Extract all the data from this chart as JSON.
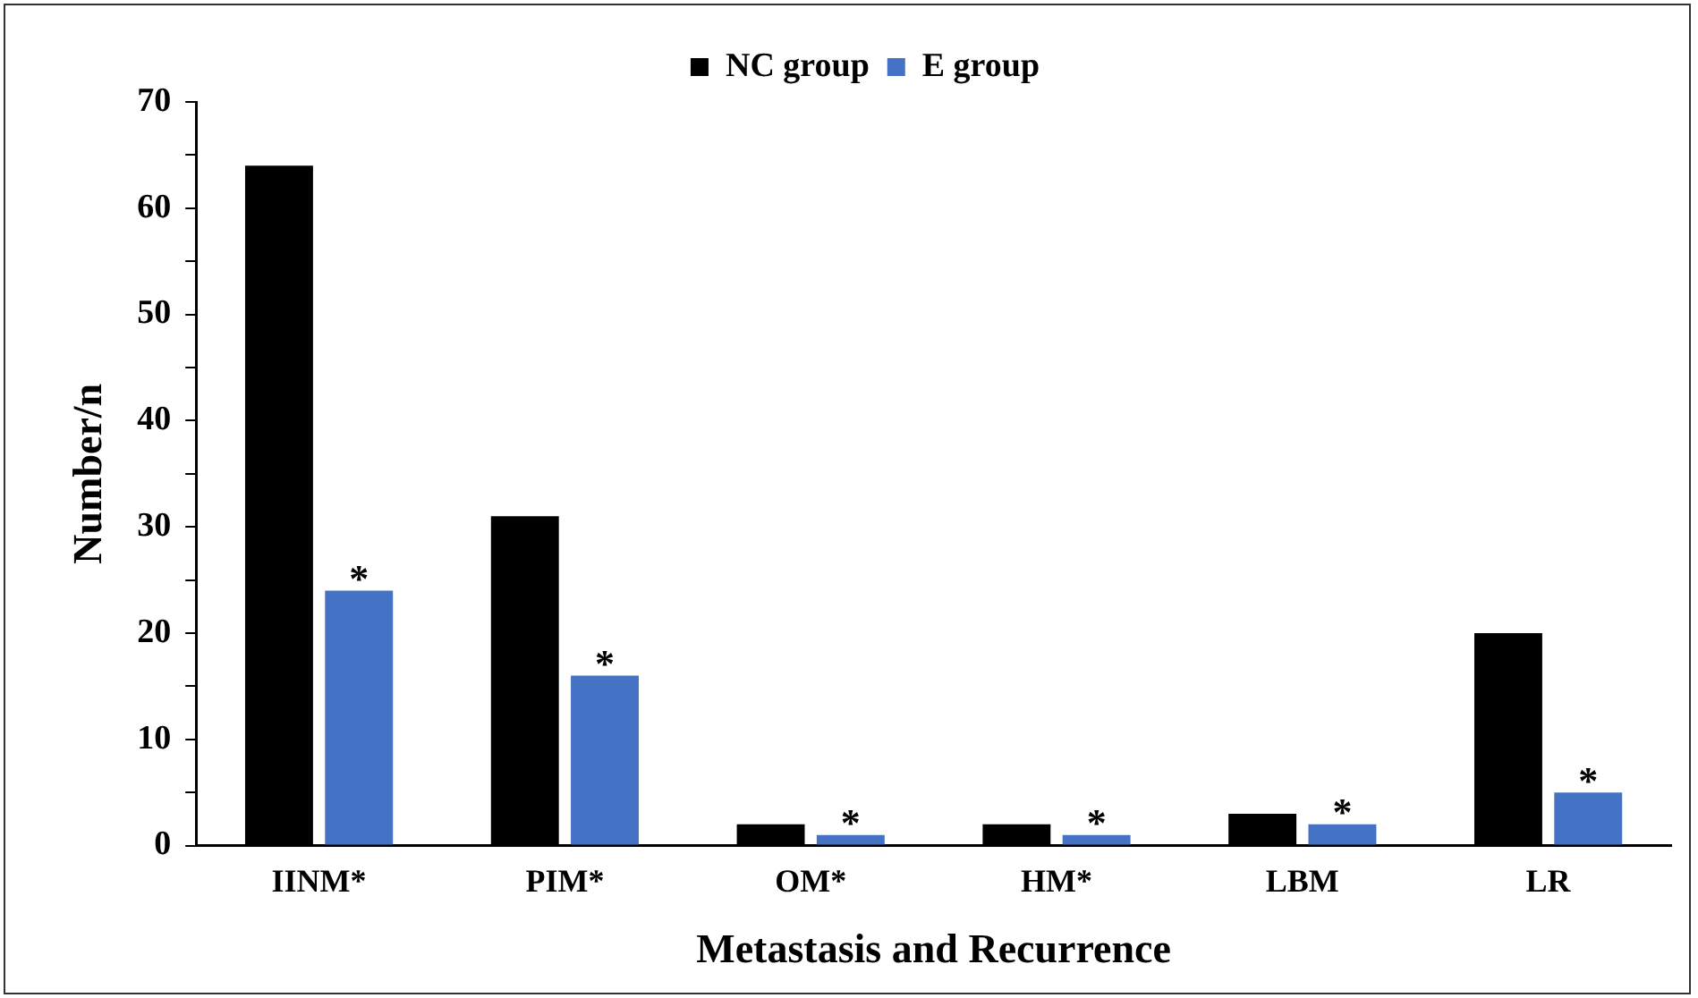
{
  "chart_data": {
    "type": "bar",
    "xlabel": "Metastasis and Recurrence",
    "ylabel": "Number/n",
    "categories": [
      "IINM*",
      "PIM*",
      "OM*",
      "HM*",
      "LBM",
      "LR"
    ],
    "series": [
      {
        "name": "NC group",
        "color": "#000000",
        "values": [
          64,
          31,
          2,
          2,
          3,
          20
        ]
      },
      {
        "name": "E group",
        "color": "#4472c4",
        "values": [
          24,
          16,
          1,
          1,
          2,
          5
        ]
      }
    ],
    "ylim": [
      0,
      70
    ],
    "yticks": [
      0,
      {
        "value": 5,
        "label": null
      },
      10,
      {
        "value": 15,
        "label": null
      },
      20,
      {
        "value": 25,
        "label": null
      },
      30,
      {
        "value": 35,
        "label": null
      },
      40,
      {
        "value": 45,
        "label": null
      },
      50,
      {
        "value": 55,
        "label": null
      },
      60,
      {
        "value": 65,
        "label": null
      },
      70
    ],
    "grid": false,
    "legend": "top",
    "annotations": [
      {
        "text": "*",
        "x": "IINM*",
        "y": 24
      },
      {
        "text": "*",
        "x": "PIM*",
        "y": 16
      },
      {
        "text": "*",
        "x": "OM*",
        "y": 1
      },
      {
        "text": "*",
        "x": "HM*",
        "y": 1
      },
      {
        "text": "*",
        "x": "LBM",
        "y": 2
      },
      {
        "text": "*",
        "x": "LR",
        "y": 5
      }
    ]
  }
}
